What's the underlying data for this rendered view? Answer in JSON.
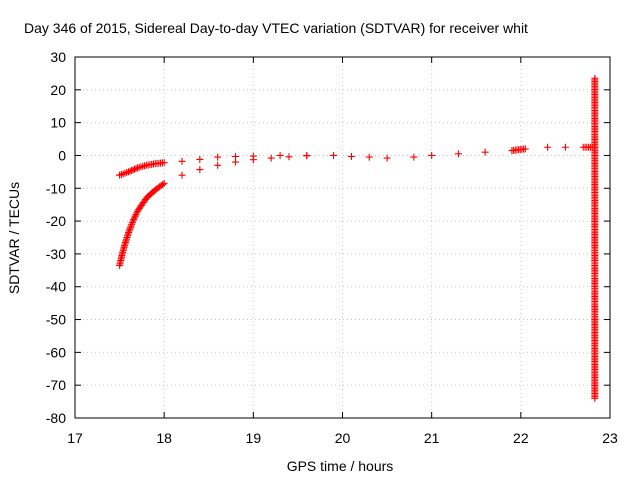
{
  "chart_data": {
    "type": "scatter",
    "title": "Day 346 of 2015, Sidereal Day-to-day VTEC variation (SDTVAR) for receiver whit",
    "xlabel": "GPS time / hours",
    "ylabel": "SDTVAR / TECUs",
    "xlim": [
      17,
      23
    ],
    "ylim": [
      -80,
      30
    ],
    "xticks": [
      17,
      18,
      19,
      20,
      21,
      22,
      23
    ],
    "yticks": [
      30,
      20,
      10,
      0,
      -10,
      -20,
      -30,
      -40,
      -50,
      -60,
      -70,
      -80
    ],
    "grid": true,
    "marker": "+",
    "color": "#ff0000",
    "series": [
      {
        "values": [
          {
            "x": 17.5,
            "y": -6
          },
          {
            "x": 17.6,
            "y": -5
          },
          {
            "x": 17.7,
            "y": -3.8
          },
          {
            "x": 17.8,
            "y": -3
          },
          {
            "x": 17.9,
            "y": -2.5
          },
          {
            "x": 18.0,
            "y": -2.2
          },
          {
            "x": 18.2,
            "y": -1.8
          },
          {
            "x": 18.4,
            "y": -1.2
          },
          {
            "x": 18.6,
            "y": -0.5
          },
          {
            "x": 18.8,
            "y": -0.3
          },
          {
            "x": 19.0,
            "y": -0.2
          },
          {
            "x": 19.3,
            "y": 0
          },
          {
            "x": 19.6,
            "y": 0
          },
          {
            "x": 19.9,
            "y": 0
          },
          {
            "x": 20.1,
            "y": -0.3
          },
          {
            "x": 20.3,
            "y": -0.5
          },
          {
            "x": 20.5,
            "y": -0.8
          },
          {
            "x": 20.8,
            "y": -0.5
          },
          {
            "x": 21.0,
            "y": 0
          },
          {
            "x": 21.3,
            "y": 0.5
          },
          {
            "x": 21.6,
            "y": 1
          },
          {
            "x": 21.9,
            "y": 1.5
          },
          {
            "x": 22.05,
            "y": 2
          },
          {
            "x": 22.3,
            "y": 2.5
          },
          {
            "x": 22.5,
            "y": 2.5
          },
          {
            "x": 22.7,
            "y": 2.5
          },
          {
            "x": 22.8,
            "y": 2.5
          }
        ]
      },
      {
        "values": [
          {
            "x": 17.5,
            "y": -33.5
          },
          {
            "x": 17.53,
            "y": -30
          },
          {
            "x": 17.56,
            "y": -27
          },
          {
            "x": 17.6,
            "y": -23.5
          },
          {
            "x": 17.65,
            "y": -20
          },
          {
            "x": 17.7,
            "y": -17
          },
          {
            "x": 17.8,
            "y": -13
          },
          {
            "x": 17.9,
            "y": -10.5
          },
          {
            "x": 18.0,
            "y": -8.5
          },
          {
            "x": 18.2,
            "y": -6
          },
          {
            "x": 18.4,
            "y": -4.3
          },
          {
            "x": 18.6,
            "y": -3
          },
          {
            "x": 18.8,
            "y": -2
          },
          {
            "x": 19.0,
            "y": -1.3
          },
          {
            "x": 19.2,
            "y": -0.8
          },
          {
            "x": 19.4,
            "y": -0.4
          },
          {
            "x": 19.6,
            "y": -0.1
          }
        ]
      },
      {
        "values": [
          {
            "x": 22.83,
            "y": 23.5
          },
          {
            "x": 22.83,
            "y": -25.5
          },
          {
            "x": 22.83,
            "y": -36.5
          },
          {
            "x": 22.83,
            "y": -51.5
          },
          {
            "x": 22.83,
            "y": -74
          }
        ]
      }
    ]
  }
}
